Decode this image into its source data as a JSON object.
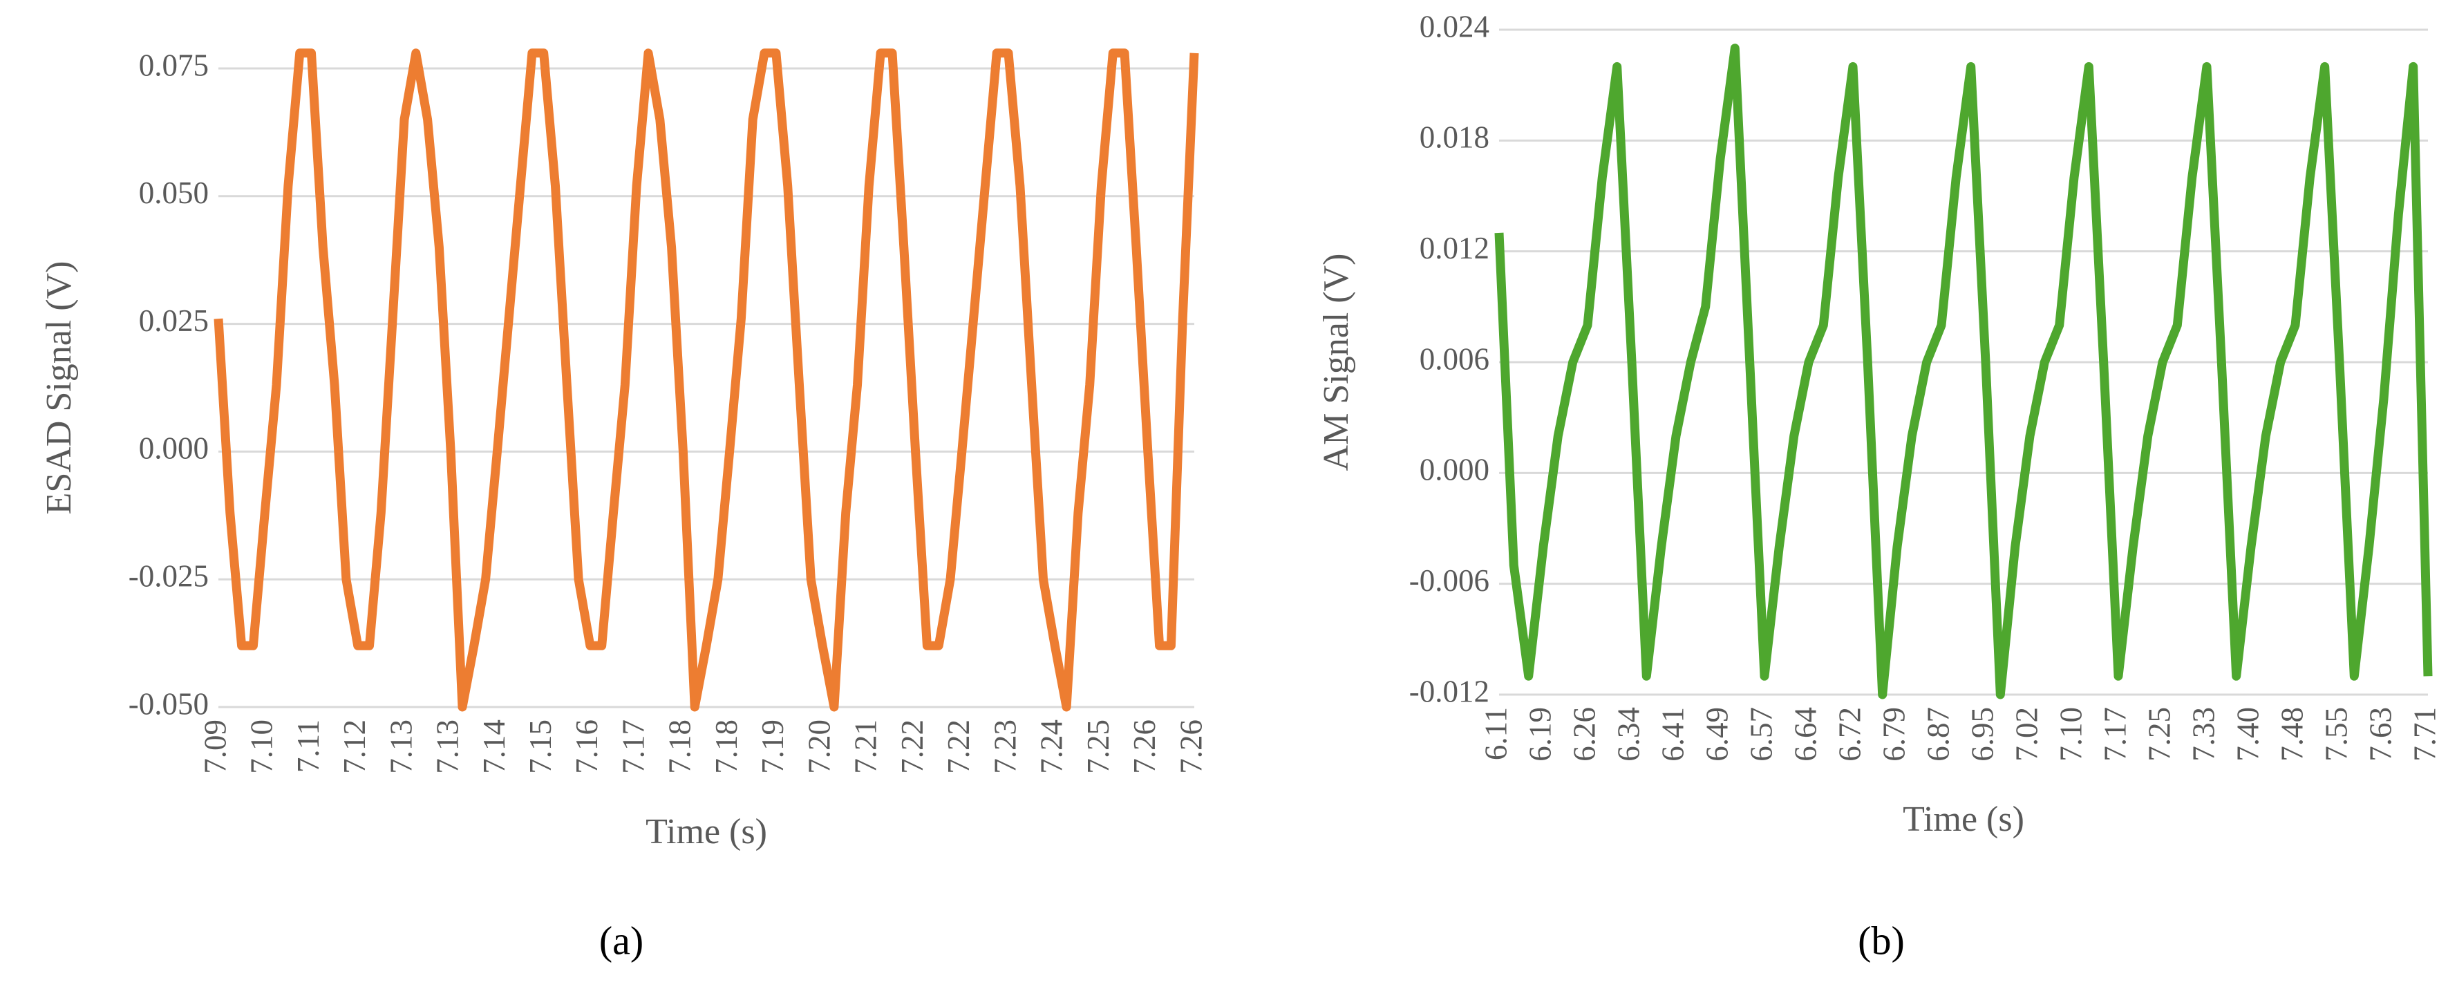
{
  "chart_data": [
    {
      "type": "line",
      "ylabel": "ESAD Signal (V)",
      "xlabel": "Time (s)",
      "caption": "(a)",
      "categories": [
        "7.09",
        null,
        null,
        null,
        "7.10",
        null,
        null,
        null,
        "7.11",
        null,
        null,
        null,
        "7.12",
        null,
        null,
        null,
        "7.13",
        null,
        null,
        null,
        "7.13",
        null,
        null,
        null,
        "7.14",
        null,
        null,
        null,
        "7.15",
        null,
        null,
        null,
        "7.16",
        null,
        null,
        null,
        "7.17",
        null,
        null,
        null,
        "7.18",
        null,
        null,
        null,
        "7.18",
        null,
        null,
        null,
        "7.19",
        null,
        null,
        null,
        "7.20",
        null,
        null,
        null,
        "7.21",
        null,
        null,
        null,
        "7.22",
        null,
        null,
        null,
        "7.22",
        null,
        null,
        null,
        "7.23",
        null,
        null,
        null,
        "7.24",
        null,
        null,
        null,
        "7.25",
        null,
        null,
        null,
        "7.26",
        null,
        null,
        null,
        "7.26"
      ],
      "series": [
        {
          "name": "ESAD",
          "color": "#ed7d31",
          "values": [
            0.026,
            -0.012,
            -0.038,
            -0.038,
            -0.012,
            0.013,
            0.052,
            0.078,
            0.078,
            0.04,
            0.013,
            -0.025,
            -0.038,
            -0.038,
            -0.012,
            0.026,
            0.065,
            0.078,
            0.065,
            0.04,
            0.0,
            -0.05,
            -0.038,
            -0.025,
            0.0,
            0.026,
            0.052,
            0.078,
            0.078,
            0.052,
            0.013,
            -0.025,
            -0.038,
            -0.038,
            -0.012,
            0.013,
            0.052,
            0.078,
            0.065,
            0.04,
            0.0,
            -0.05,
            -0.038,
            -0.025,
            0.0,
            0.026,
            0.065,
            0.078,
            0.078,
            0.052,
            0.013,
            -0.025,
            -0.038,
            -0.05,
            -0.012,
            0.013,
            0.052,
            0.078,
            0.078,
            0.04,
            0.0,
            -0.038,
            -0.038,
            -0.025,
            0.0,
            0.026,
            0.052,
            0.078,
            0.078,
            0.052,
            0.013,
            -0.025,
            -0.038,
            -0.05,
            -0.012,
            0.013,
            0.052,
            0.078,
            0.078,
            0.04,
            0.0,
            -0.038,
            -0.038,
            0.026,
            0.078
          ]
        }
      ],
      "ylim": [
        -0.05,
        0.075
      ],
      "yticks": [
        {
          "value": -0.05,
          "label": "-0.050"
        },
        -0.025,
        {
          "value": 0,
          "label": "0.000"
        },
        0.025,
        {
          "value": 0.05,
          "label": "0.050"
        },
        0.075
      ],
      "grid": true
    },
    {
      "type": "line",
      "ylabel": "AM Signal (V)",
      "xlabel": "Time (s)",
      "caption": "(b)",
      "categories": [
        "6.11",
        null,
        null,
        "6.19",
        null,
        null,
        "6.26",
        null,
        null,
        "6.34",
        null,
        null,
        "6.41",
        null,
        null,
        "6.49",
        null,
        null,
        "6.57",
        null,
        null,
        "6.64",
        null,
        null,
        "6.72",
        null,
        null,
        "6.79",
        null,
        null,
        "6.87",
        null,
        null,
        "6.95",
        null,
        null,
        "7.02",
        null,
        null,
        "7.10",
        null,
        null,
        "7.17",
        null,
        null,
        "7.25",
        null,
        null,
        "7.33",
        null,
        null,
        "7.40",
        null,
        null,
        "7.48",
        null,
        null,
        "7.55",
        null,
        null,
        "7.63",
        null,
        null,
        "7.71"
      ],
      "series": [
        {
          "name": "AM",
          "color": "#4ea72e",
          "values": [
            0.013,
            -0.005,
            -0.011,
            -0.004,
            0.002,
            0.006,
            0.008,
            0.016,
            0.022,
            0.006,
            -0.011,
            -0.004,
            0.002,
            0.006,
            0.009,
            0.017,
            0.023,
            0.006,
            -0.011,
            -0.004,
            0.002,
            0.006,
            0.008,
            0.016,
            0.022,
            0.006,
            -0.012,
            -0.004,
            0.002,
            0.006,
            0.008,
            0.016,
            0.022,
            0.006,
            -0.012,
            -0.004,
            0.002,
            0.006,
            0.008,
            0.016,
            0.022,
            0.006,
            -0.011,
            -0.004,
            0.002,
            0.006,
            0.008,
            0.016,
            0.022,
            0.006,
            -0.011,
            -0.004,
            0.002,
            0.006,
            0.008,
            0.016,
            0.022,
            0.006,
            -0.011,
            -0.004,
            0.004,
            0.014,
            0.022,
            -0.011
          ]
        }
      ],
      "ylim": [
        -0.012,
        0.024
      ],
      "yticks": [
        -0.012,
        -0.006,
        {
          "value": 0,
          "label": "0.000"
        },
        0.006,
        0.012,
        0.018,
        0.024
      ],
      "grid": true
    }
  ]
}
